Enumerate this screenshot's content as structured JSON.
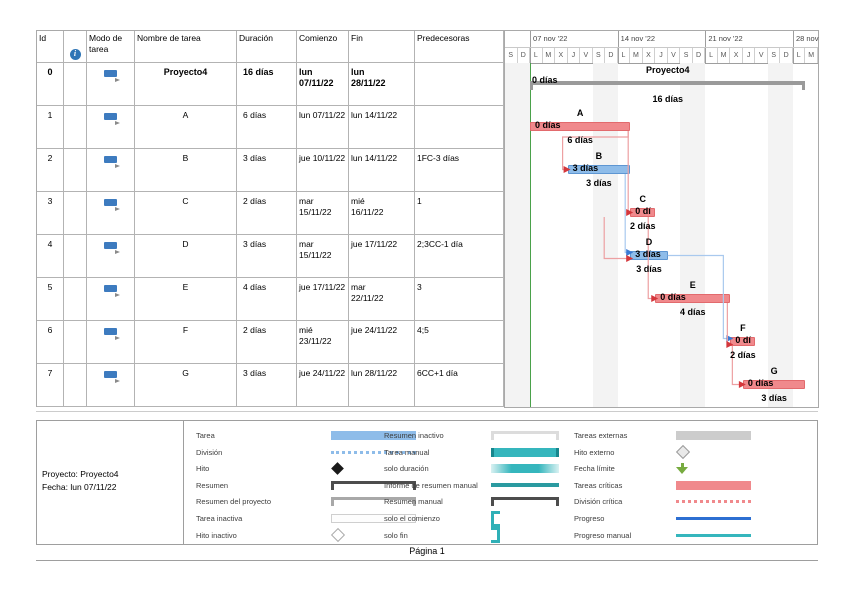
{
  "table": {
    "headers": {
      "id": "Id",
      "mode": "Modo de tarea",
      "name": "Nombre de tarea",
      "duration": "Duración",
      "start": "Comienzo",
      "finish": "Fin",
      "predecessors": "Predecesoras"
    },
    "rows": [
      {
        "id": "0",
        "name": "Proyecto4",
        "duration": "16 días",
        "start": "lun\n07/11/22",
        "finish": "lun\n28/11/22",
        "predecessors": "",
        "summary": true
      },
      {
        "id": "1",
        "name": "A",
        "duration": "6 días",
        "start": "lun 07/11/22",
        "finish": "lun 14/11/22",
        "predecessors": "",
        "summary": false
      },
      {
        "id": "2",
        "name": "B",
        "duration": "3 días",
        "start": "jue 10/11/22",
        "finish": "lun 14/11/22",
        "predecessors": "1FC-3 días",
        "summary": false
      },
      {
        "id": "3",
        "name": "C",
        "duration": "2 días",
        "start": "mar\n15/11/22",
        "finish": "mié\n16/11/22",
        "predecessors": "1",
        "summary": false
      },
      {
        "id": "4",
        "name": "D",
        "duration": "3 días",
        "start": "mar\n15/11/22",
        "finish": "jue 17/11/22",
        "predecessors": "2;3CC-1 día",
        "summary": false
      },
      {
        "id": "5",
        "name": "E",
        "duration": "4 días",
        "start": "jue 17/11/22",
        "finish": "mar\n22/11/22",
        "predecessors": "3",
        "summary": false
      },
      {
        "id": "6",
        "name": "F",
        "duration": "2 días",
        "start": "mié\n23/11/22",
        "finish": "jue 24/11/22",
        "predecessors": "4;5",
        "summary": false
      },
      {
        "id": "7",
        "name": "G",
        "duration": "3 días",
        "start": "jue 24/11/22",
        "finish": "lun 28/11/22",
        "predecessors": "6CC+1 día",
        "summary": false
      }
    ]
  },
  "timeline": {
    "weeks": [
      {
        "label": "07 nov '22",
        "start_index": 2
      },
      {
        "label": "14 nov '22",
        "start_index": 9
      },
      {
        "label": "21 nov '22",
        "start_index": 16
      },
      {
        "label": "28 nov",
        "start_index": 23
      }
    ],
    "day_letters": [
      "S",
      "D",
      "L",
      "M",
      "X",
      "J",
      "V",
      "S",
      "D",
      "L",
      "M",
      "X",
      "J",
      "V",
      "S",
      "D",
      "L",
      "M",
      "X",
      "J",
      "V",
      "S",
      "D",
      "L",
      "M"
    ],
    "weekend_indices": [
      0,
      1,
      7,
      8,
      14,
      15,
      21,
      22
    ],
    "project_start_index": 2
  },
  "gantt": {
    "bars": [
      {
        "row": 0,
        "start": 2,
        "end": 24,
        "type": "summary",
        "name": "Proyecto4",
        "on_bar": "0 días",
        "below": "16 días"
      },
      {
        "row": 1,
        "start": 2,
        "end": 10,
        "type": "critical",
        "name": "A",
        "on_bar": "0 días",
        "below": "6 días"
      },
      {
        "row": 2,
        "start": 5,
        "end": 10,
        "type": "task",
        "name": "B",
        "on_bar": "3 días",
        "below": "3 días"
      },
      {
        "row": 3,
        "start": 10,
        "end": 12,
        "type": "critical",
        "name": "C",
        "on_bar": "0 dí",
        "below": "2 días"
      },
      {
        "row": 4,
        "start": 10,
        "end": 13,
        "type": "task",
        "name": "D",
        "on_bar": "3 días",
        "below": "3 días"
      },
      {
        "row": 5,
        "start": 12,
        "end": 18,
        "type": "critical",
        "name": "E",
        "on_bar": "0 días",
        "below": "4 días"
      },
      {
        "row": 6,
        "start": 18,
        "end": 20,
        "type": "critical",
        "name": "F",
        "on_bar": "0 dí",
        "below": "2 días"
      },
      {
        "row": 7,
        "start": 19,
        "end": 24,
        "type": "critical",
        "name": "G",
        "on_bar": "0 días",
        "below": "3 días"
      }
    ],
    "links": [
      {
        "from": "A",
        "to": "B",
        "type": "critical",
        "from_day": 10,
        "from_row": 1,
        "to_day": 5,
        "to_row": 2,
        "exit": "bottom",
        "vx": -2,
        "tip_dy": 0
      },
      {
        "from": "A",
        "to": "C",
        "type": "critical",
        "from_day": 10,
        "from_row": 1,
        "to_day": 10,
        "to_row": 3,
        "exit": "bottom",
        "vx": -2,
        "tip_dy": 0
      },
      {
        "from": "B",
        "to": "D",
        "type": "task",
        "from_day": 10,
        "from_row": 2,
        "to_day": 10,
        "to_row": 4,
        "exit": "bottom",
        "vx": -5,
        "tip_dy": -3
      },
      {
        "from": "C",
        "to": "D",
        "type": "critical",
        "from_day": 10,
        "from_row": 3,
        "to_day": 10,
        "to_row": 4,
        "exit": "bottom",
        "vx": -26,
        "tip_dy": 3
      },
      {
        "from": "C",
        "to": "E",
        "type": "critical",
        "from_day": 12,
        "from_row": 3,
        "to_day": 12,
        "to_row": 5,
        "exit": "bottom",
        "vx": -7,
        "tip_dy": 0
      },
      {
        "from": "D",
        "to": "F",
        "type": "task",
        "from_day": 13,
        "from_row": 4,
        "to_day": 18,
        "to_row": 6,
        "exit": "side",
        "vx": 0,
        "tip_dy": -3
      },
      {
        "from": "E",
        "to": "F",
        "type": "critical",
        "from_day": 18,
        "from_row": 5,
        "to_day": 18,
        "to_row": 6,
        "exit": "bottom",
        "vx": -3,
        "tip_dy": 3
      },
      {
        "from": "F",
        "to": "G",
        "type": "critical",
        "from_day": 18,
        "from_row": 6,
        "to_day": 19,
        "to_row": 7,
        "exit": "bottom",
        "vx": 2,
        "tip_dy": 0
      }
    ]
  },
  "colors": {
    "critical": "#f0898c",
    "critical_border": "#e26a6d",
    "task": "#8ebce9",
    "task_border": "#5e96d2",
    "summary": "#9a9a9a",
    "green_line": "#4aa14a",
    "link_critical_line": "#eda0a2",
    "link_task_line": "#a9c9ee",
    "link_critical_arrow": "#d4373c",
    "link_task_arrow": "#3a7ad4"
  },
  "legend": {
    "project_line1": "Proyecto: Proyecto4",
    "project_line2": "Fecha: lun 07/11/22",
    "columns": [
      {
        "items": [
          {
            "label": "Tarea",
            "swatch": "bar-task"
          },
          {
            "label": "División",
            "swatch": "split"
          },
          {
            "label": "Hito",
            "swatch": "milestone"
          },
          {
            "label": "Resumen",
            "swatch": "summary"
          },
          {
            "label": "Resumen del proyecto",
            "swatch": "project-summary"
          },
          {
            "label": "Tarea inactiva",
            "swatch": "inactive-task"
          },
          {
            "label": "Hito inactivo",
            "swatch": "inactive-milestone"
          }
        ]
      },
      {
        "items": [
          {
            "label": "Resumen inactivo",
            "swatch": "inactive-summary"
          },
          {
            "label": "Tarea manual",
            "swatch": "manual-task"
          },
          {
            "label": "solo duración",
            "swatch": "duration-only"
          },
          {
            "label": "Informe de resumen manual",
            "swatch": "manual-rollup"
          },
          {
            "label": "Resumen manual",
            "swatch": "summary"
          },
          {
            "label": "solo el comienzo",
            "swatch": "start-only"
          },
          {
            "label": "solo fin",
            "swatch": "finish-only"
          }
        ]
      },
      {
        "items": [
          {
            "label": "Tareas externas",
            "swatch": "external"
          },
          {
            "label": "Hito externo",
            "swatch": "external-milestone"
          },
          {
            "label": "Fecha límite",
            "swatch": "deadline"
          },
          {
            "label": "Tareas críticas",
            "swatch": "critical"
          },
          {
            "label": "División crítica",
            "swatch": "critical-split"
          },
          {
            "label": "Progreso",
            "swatch": "progress"
          },
          {
            "label": "Progreso manual",
            "swatch": "manual-progress"
          }
        ]
      }
    ]
  },
  "footer": {
    "page_label": "Página 1"
  }
}
